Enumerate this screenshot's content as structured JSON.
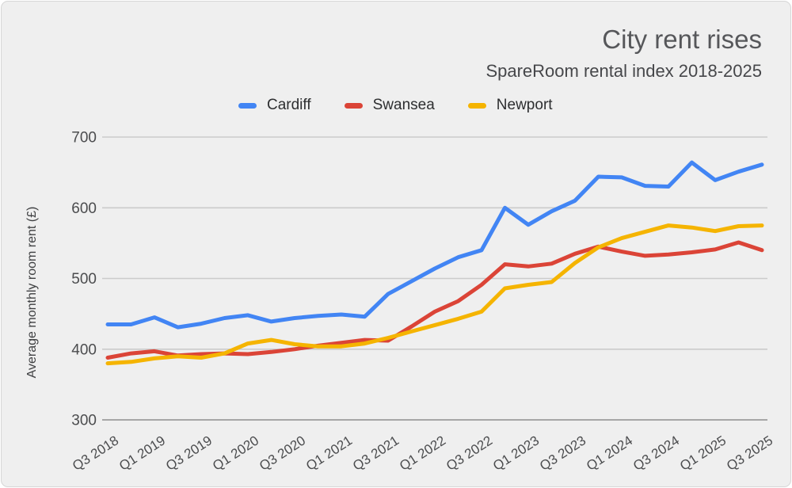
{
  "chart_data": {
    "type": "line",
    "title": "City rent rises",
    "subtitle": "SpareRoom rental index 2018-2025",
    "ylabel": "Average monthly room rent (£)",
    "xlabel": "",
    "ylim": [
      300,
      700
    ],
    "y_ticks": [
      300,
      400,
      500,
      600,
      700
    ],
    "grid": true,
    "legend_position": "top",
    "x_tick_labels": [
      "Q3 2018",
      "Q1 2019",
      "Q3 2019",
      "Q1 2020",
      "Q3 2020",
      "Q1 2021",
      "Q3 2021",
      "Q1 2022",
      "Q3 2022",
      "Q1 2023",
      "Q3 2023",
      "Q1 2024",
      "Q3 2024",
      "Q1 2025",
      "Q3 2025"
    ],
    "categories": [
      "Q3 2018",
      "Q4 2018",
      "Q1 2019",
      "Q2 2019",
      "Q3 2019",
      "Q4 2019",
      "Q1 2020",
      "Q2 2020",
      "Q3 2020",
      "Q4 2020",
      "Q1 2021",
      "Q2 2021",
      "Q3 2021",
      "Q4 2021",
      "Q1 2022",
      "Q2 2022",
      "Q3 2022",
      "Q4 2022",
      "Q1 2023",
      "Q2 2023",
      "Q3 2023",
      "Q4 2023",
      "Q1 2024",
      "Q2 2024",
      "Q3 2024",
      "Q4 2024",
      "Q1 2025",
      "Q2 2025",
      "Q3 2025"
    ],
    "series": [
      {
        "name": "Cardiff",
        "color": "#4285F4",
        "values": [
          435,
          435,
          445,
          431,
          436,
          444,
          448,
          439,
          444,
          447,
          449,
          446,
          478,
          496,
          514,
          530,
          540,
          600,
          576,
          595,
          610,
          644,
          643,
          631,
          630,
          664,
          639,
          651,
          661
        ]
      },
      {
        "name": "Swansea",
        "color": "#DB4437",
        "values": [
          388,
          394,
          397,
          391,
          393,
          394,
          393,
          396,
          400,
          405,
          409,
          413,
          412,
          432,
          453,
          468,
          491,
          520,
          517,
          521,
          535,
          545,
          538,
          532,
          534,
          537,
          541,
          551,
          540
        ]
      },
      {
        "name": "Newport",
        "color": "#F5B400",
        "values": [
          380,
          382,
          387,
          390,
          388,
          394,
          408,
          413,
          407,
          404,
          404,
          408,
          416,
          425,
          434,
          443,
          453,
          486,
          491,
          495,
          522,
          544,
          557,
          566,
          575,
          572,
          567,
          574,
          575
        ]
      }
    ]
  },
  "colors": {
    "card_background": "#EFEFEF",
    "card_border": "#D6D6D6",
    "gridline": "#CBCBCB",
    "baseline": "#A6A6A6",
    "title_text": "#56575A",
    "tick_text": "#4B4C4E"
  }
}
